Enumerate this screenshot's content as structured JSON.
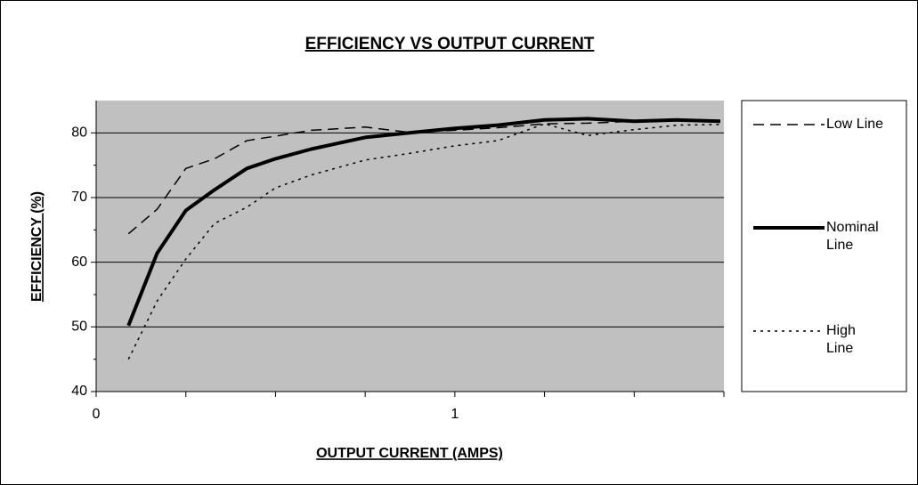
{
  "chart_data": {
    "type": "line",
    "title": "EFFICIENCY VS OUTPUT CURRENT",
    "x_label": "OUTPUT CURRENT (AMPS)",
    "y_label": "EFFICIENCY (%)",
    "x": [
      0.09,
      0.17,
      0.25,
      0.33,
      0.42,
      0.5,
      0.6,
      0.75,
      0.87,
      1.0,
      1.12,
      1.25,
      1.37,
      1.5,
      1.62,
      1.74
    ],
    "series": [
      {
        "name": "Low Line",
        "color": "#000000",
        "dash": "dashed",
        "width": 1.5,
        "values": [
          64.4,
          68.2,
          74.5,
          76,
          78.8,
          79.5,
          80.4,
          80.9,
          80.1,
          80.4,
          80.8,
          81.4,
          81.5,
          81.8,
          81.9,
          81.7
        ]
      },
      {
        "name": "Nominal Line",
        "color": "#000000",
        "dash": "solid",
        "width": 4,
        "values": [
          50.2,
          61.4,
          68,
          71.2,
          74.5,
          76,
          77.5,
          79.3,
          80,
          80.7,
          81.2,
          82,
          82.2,
          81.8,
          82,
          81.8
        ]
      },
      {
        "name": "High Line",
        "color": "#000000",
        "dash": "dotted",
        "width": 1.5,
        "values": [
          45,
          54,
          60.5,
          66,
          68.5,
          71.5,
          73.5,
          75.8,
          76.8,
          78,
          78.8,
          81.4,
          79.6,
          80.5,
          81.2,
          81.3
        ]
      }
    ],
    "xlim": [
      0,
      1.75
    ],
    "xticks": [
      0,
      1
    ],
    "xminor_ticks": [
      0.25,
      0.5,
      0.75,
      1.25,
      1.5,
      1.75
    ],
    "ylim": [
      40,
      85
    ],
    "yticks": [
      40,
      50,
      60,
      70,
      80
    ],
    "yminor_ticks": [
      45,
      55,
      65,
      75
    ],
    "grid": true,
    "plot_background": "#c0c0c0",
    "legend": "right"
  }
}
